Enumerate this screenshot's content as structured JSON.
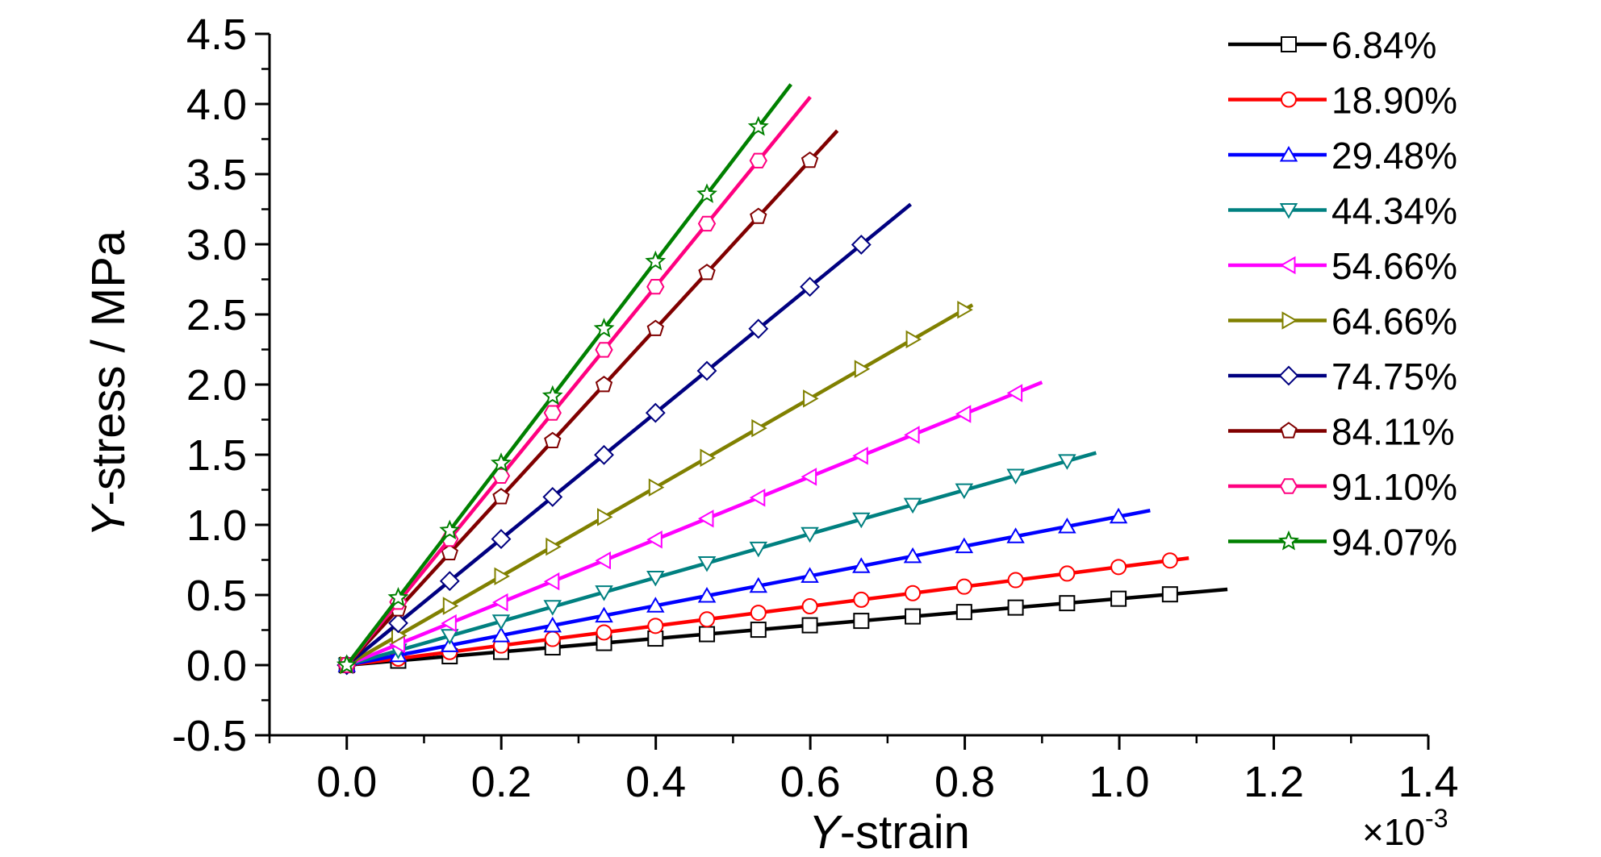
{
  "chart_data": {
    "type": "line",
    "xlabel_prefix": "Y",
    "xlabel_suffix": "-strain",
    "ylabel_prefix": "Y",
    "ylabel_suffix": "-stress / MPa",
    "x_multiplier": "×10",
    "x_multiplier_exp": "-3",
    "xlim": [
      -0.1,
      1.4
    ],
    "ylim": [
      -0.5,
      4.5
    ],
    "x_ticks": [
      "0.0",
      "0.2",
      "0.4",
      "0.6",
      "0.8",
      "1.0",
      "1.2",
      "1.4"
    ],
    "y_ticks": [
      "-0.5",
      "0.0",
      "0.5",
      "1.0",
      "1.5",
      "2.0",
      "2.5",
      "3.0",
      "3.5",
      "4.0",
      "4.5"
    ],
    "grid": false,
    "legend_position": "top-right",
    "series": [
      {
        "name": "6.84%",
        "color": "#000000",
        "marker": "square",
        "x_end": 1.14,
        "slope": 0.4737
      },
      {
        "name": "18.90%",
        "color": "#ff0000",
        "marker": "circle",
        "x_end": 1.09,
        "slope": 0.7
      },
      {
        "name": "29.48%",
        "color": "#0000ff",
        "marker": "triangle-up",
        "x_end": 1.04,
        "slope": 1.06
      },
      {
        "name": "44.34%",
        "color": "#008080",
        "marker": "triangle-down",
        "x_end": 0.97,
        "slope": 1.56
      },
      {
        "name": "54.66%",
        "color": "#ff00ff",
        "marker": "triangle-left",
        "x_end": 0.9,
        "slope": 2.24
      },
      {
        "name": "64.66%",
        "color": "#808000",
        "marker": "triangle-right",
        "x_end": 0.81,
        "slope": 3.17
      },
      {
        "name": "74.75%",
        "color": "#000080",
        "marker": "diamond",
        "x_end": 0.73,
        "slope": 4.5
      },
      {
        "name": "84.11%",
        "color": "#800000",
        "marker": "pentagon",
        "x_end": 0.635,
        "slope": 6.0
      },
      {
        "name": "91.10%",
        "color": "#ff0080",
        "marker": "hexagon",
        "x_end": 0.6,
        "slope": 6.75
      },
      {
        "name": "94.07%",
        "color": "#008000",
        "marker": "star",
        "x_end": 0.575,
        "slope": 7.2
      }
    ]
  }
}
